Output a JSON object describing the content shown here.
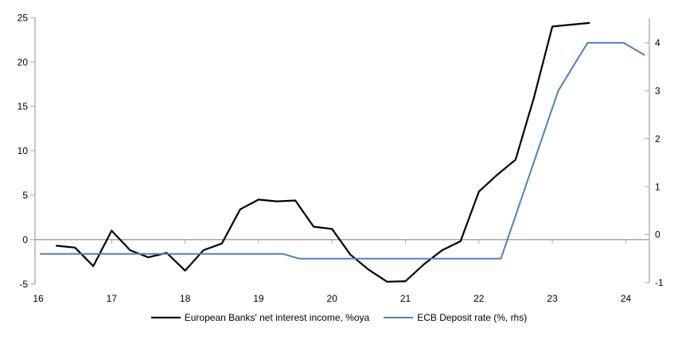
{
  "chart_data": {
    "type": "line",
    "title": "",
    "xlabel": "",
    "ylabel_left": "",
    "ylabel_right": "",
    "xlim": [
      16,
      24.45
    ],
    "left_ylim": [
      -5,
      25
    ],
    "right_ylim": [
      -1,
      4.5
    ],
    "grid": false,
    "zero_line": true,
    "legend_position": "bottom",
    "x_axis": {
      "tick_labels": [
        "16",
        "17",
        "18",
        "19",
        "20",
        "21",
        "22",
        "23",
        "24"
      ],
      "tick_values": [
        16,
        17,
        18,
        19,
        20,
        21,
        22,
        23,
        24
      ]
    },
    "left_axis": {
      "tick_labels": [
        "25",
        "20",
        "15",
        "10",
        "5",
        "0",
        "-5"
      ],
      "tick_values": [
        25,
        20,
        15,
        10,
        5,
        0,
        -5
      ]
    },
    "right_axis": {
      "tick_labels": [
        "4",
        "3",
        "2",
        "1",
        "0",
        "-1"
      ],
      "tick_values": [
        4,
        3,
        2,
        1,
        0,
        -1
      ]
    },
    "series": [
      {
        "name": "European Banks' net interest income, %oya",
        "axis": "left",
        "color": "#000000",
        "width": 2.2,
        "x": [
          16.25,
          16.5,
          16.75,
          17.0,
          17.25,
          17.5,
          17.75,
          18.0,
          18.25,
          18.5,
          18.75,
          19.0,
          19.25,
          19.5,
          19.75,
          20.0,
          20.25,
          20.5,
          20.75,
          21.0,
          21.25,
          21.5,
          21.75,
          22.0,
          22.25,
          22.5,
          22.75,
          23.0,
          23.25,
          23.5
        ],
        "values": [
          -0.7,
          -0.9,
          -3.0,
          1.0,
          -1.2,
          -2.0,
          -1.5,
          -3.5,
          -1.2,
          -0.45,
          3.4,
          4.5,
          4.3,
          4.4,
          1.45,
          1.2,
          -1.7,
          -3.4,
          -4.75,
          -4.7,
          -2.8,
          -1.2,
          -0.2,
          5.4,
          7.3,
          9.0,
          16.0,
          24.0,
          24.2,
          24.4
        ]
      },
      {
        "name": "ECB Deposit rate (%, rhs)",
        "axis": "right",
        "color": "#4F81BD",
        "width": 2,
        "x": [
          16.03,
          19.33,
          19.55,
          22.3,
          23.08,
          23.48,
          23.97,
          24.25
        ],
        "values": [
          -0.4,
          -0.4,
          -0.5,
          -0.5,
          3.0,
          4.0,
          4.0,
          3.75
        ]
      }
    ]
  },
  "legend": {
    "items": [
      {
        "label": "European Banks' net interest income, %oya",
        "color": "#000000"
      },
      {
        "label": "ECB Deposit rate (%, rhs)",
        "color": "#4F81BD"
      }
    ]
  },
  "colors": {
    "axis": "#A6A6A6",
    "zero_line": "#A6A6A6",
    "text": "#000000",
    "background": "#FFFFFF"
  }
}
